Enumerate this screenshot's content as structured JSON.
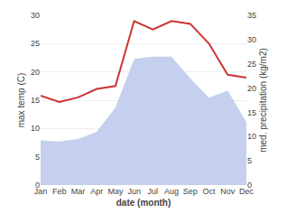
{
  "chart_data": {
    "type": "line",
    "xlabel": "date (month)",
    "ylabel": "max temp (C)",
    "y2label": "med. precipitation (kg/m2)",
    "categories": [
      "Jan",
      "Feb",
      "Mar",
      "Apr",
      "May",
      "Jun",
      "Jul",
      "Aug",
      "Sep",
      "Oct",
      "Nov",
      "Dec"
    ],
    "series": [
      {
        "type": "area",
        "axis": "y2",
        "color": "#c5d0ee",
        "values": [
          9.2,
          9.0,
          9.5,
          11.0,
          16.0,
          26.0,
          26.5,
          26.5,
          22.0,
          18.0,
          19.5,
          13.0
        ]
      },
      {
        "type": "line",
        "color": "#cc3333",
        "values": [
          15.8,
          14.7,
          15.5,
          17.0,
          17.5,
          29.0,
          27.5,
          29.0,
          28.5,
          25.0,
          19.5,
          19.0
        ]
      }
    ],
    "ylim": [
      0,
      30
    ],
    "yticks": [
      0,
      5,
      10,
      15,
      20,
      25,
      30
    ],
    "y2lim": [
      0,
      35
    ],
    "y2ticks": [
      0,
      5,
      10,
      15,
      20,
      25,
      30,
      35
    ],
    "grid": true
  }
}
